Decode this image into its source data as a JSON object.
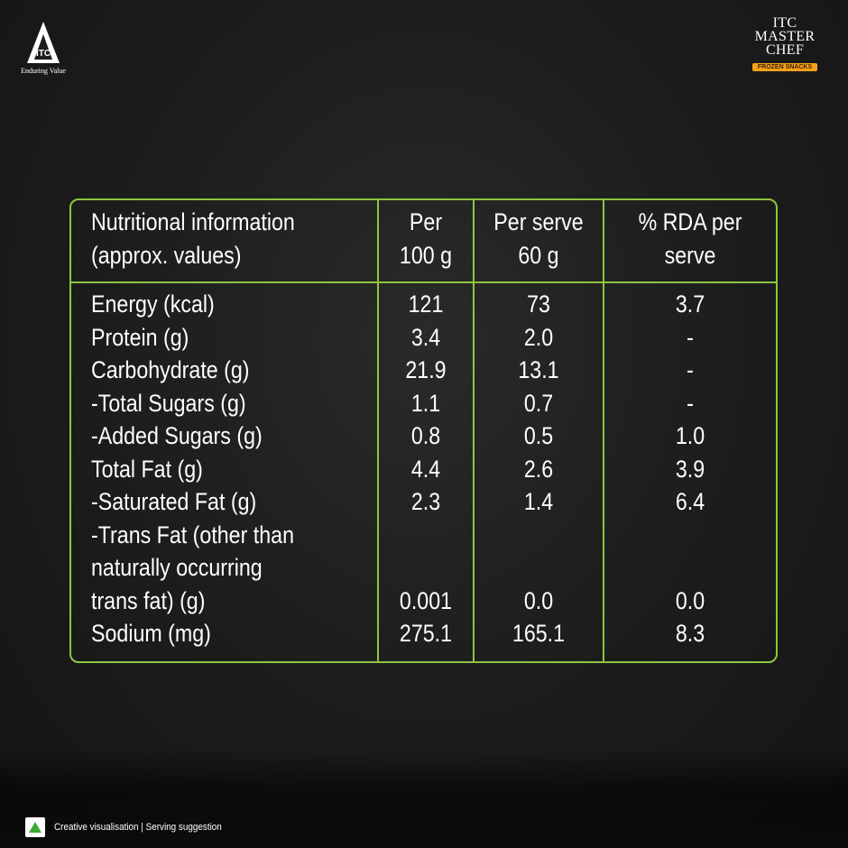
{
  "branding": {
    "itc_logo_text": "ITC",
    "itc_tagline": "Enduring Value",
    "master_chef_lines": [
      "ITC",
      "MASTER",
      "CHEF"
    ],
    "master_chef_badge": "FROZEN SNACKS"
  },
  "table": {
    "headers": [
      [
        "Nutritional information",
        "(approx. values)"
      ],
      [
        "Per",
        "100 g"
      ],
      [
        "Per serve",
        "60 g"
      ],
      [
        "% RDA per",
        "serve"
      ]
    ],
    "rows": [
      {
        "label": [
          "Energy (kcal)"
        ],
        "per100": "121",
        "perserve": "73",
        "rda": "3.7"
      },
      {
        "label": [
          "Protein (g)"
        ],
        "per100": "3.4",
        "perserve": "2.0",
        "rda": "-"
      },
      {
        "label": [
          "Carbohydrate (g)"
        ],
        "per100": "21.9",
        "perserve": "13.1",
        "rda": "-"
      },
      {
        "label": [
          "-Total Sugars (g)"
        ],
        "per100": "1.1",
        "perserve": "0.7",
        "rda": "-"
      },
      {
        "label": [
          "-Added Sugars (g)"
        ],
        "per100": "0.8",
        "perserve": "0.5",
        "rda": "1.0"
      },
      {
        "label": [
          "Total Fat (g)"
        ],
        "per100": "4.4",
        "perserve": "2.6",
        "rda": "3.9"
      },
      {
        "label": [
          "-Saturated Fat (g)"
        ],
        "per100": "2.3",
        "perserve": "1.4",
        "rda": "6.4"
      },
      {
        "label": [
          "-Trans Fat (other than",
          "naturally occurring",
          "trans fat) (g)"
        ],
        "per100": "0.001",
        "perserve": "0.0",
        "rda": "0.0"
      },
      {
        "label": [
          "Sodium (mg)"
        ],
        "per100": "275.1",
        "perserve": "165.1",
        "rda": "8.3"
      }
    ]
  },
  "footer": {
    "text": "Creative visualisation | Serving suggestion"
  },
  "colors": {
    "border": "#8cc63f",
    "badge": "#f7a21b"
  }
}
